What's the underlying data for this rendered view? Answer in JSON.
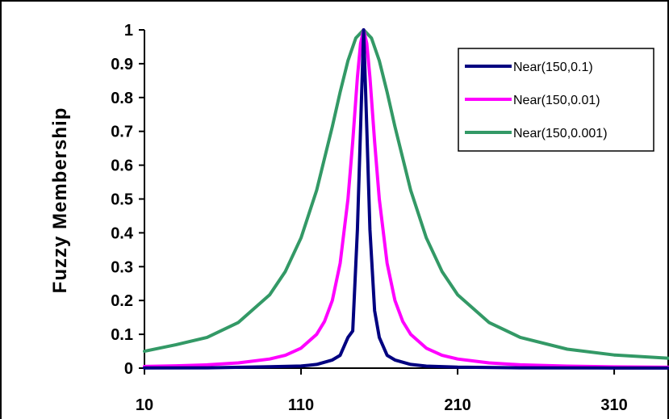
{
  "chart_data": {
    "type": "line",
    "title": "",
    "xlabel": "",
    "ylabel": "Fuzzy Membership",
    "xlim": [
      10,
      345
    ],
    "ylim": [
      0,
      1
    ],
    "x_ticks": [
      "10",
      "110",
      "210",
      "310"
    ],
    "x_tick_values": [
      10,
      110,
      210,
      310
    ],
    "y_ticks": [
      "0",
      "0.1",
      "0.2",
      "0.3",
      "0.4",
      "0.5",
      "0.6",
      "0.7",
      "0.8",
      "0.9",
      "1"
    ],
    "y_tick_values": [
      0,
      0.1,
      0.2,
      0.3,
      0.4,
      0.5,
      0.6,
      0.7,
      0.8,
      0.9,
      1
    ],
    "grid": false,
    "legend_position": "top-right",
    "series": [
      {
        "name": "Near(150,0.1)",
        "color": "#000080",
        "x": [
          10,
          50,
          90,
          110,
          120,
          130,
          135,
          140,
          143,
          146,
          148,
          150,
          152,
          154,
          157,
          160,
          165,
          170,
          180,
          190,
          210,
          250,
          300,
          345
        ],
        "y": [
          0.0005,
          0.001,
          0.0041,
          0.0062,
          0.011,
          0.024,
          0.038,
          0.091,
          0.11,
          0.41,
          0.71,
          1.0,
          0.71,
          0.41,
          0.17,
          0.091,
          0.038,
          0.024,
          0.011,
          0.006,
          0.0028,
          0.001,
          0.0004,
          0.0002
        ]
      },
      {
        "name": "Near(150,0.01)",
        "color": "#ff00ff",
        "x": [
          10,
          30,
          50,
          70,
          90,
          100,
          110,
          120,
          125,
          130,
          135,
          140,
          143,
          146,
          148,
          150,
          152,
          154,
          157,
          160,
          165,
          170,
          175,
          180,
          190,
          200,
          210,
          230,
          250,
          280,
          310,
          345
        ],
        "y": [
          0.005,
          0.0069,
          0.0099,
          0.0154,
          0.027,
          0.038,
          0.059,
          0.1,
          0.138,
          0.2,
          0.31,
          0.5,
          0.67,
          0.86,
          0.96,
          1.0,
          0.96,
          0.86,
          0.67,
          0.5,
          0.31,
          0.2,
          0.138,
          0.1,
          0.059,
          0.038,
          0.027,
          0.0154,
          0.0099,
          0.0059,
          0.0039,
          0.0026
        ]
      },
      {
        "name": "Near(150,0.001)",
        "color": "#339966",
        "x": [
          10,
          30,
          50,
          70,
          90,
          100,
          110,
          120,
          130,
          135,
          140,
          145,
          150,
          155,
          160,
          165,
          170,
          180,
          190,
          200,
          210,
          230,
          250,
          280,
          310,
          345
        ],
        "y": [
          0.05,
          0.069,
          0.091,
          0.135,
          0.217,
          0.286,
          0.385,
          0.526,
          0.714,
          0.816,
          0.909,
          0.976,
          1.0,
          0.976,
          0.909,
          0.816,
          0.714,
          0.526,
          0.385,
          0.286,
          0.217,
          0.135,
          0.091,
          0.056,
          0.039,
          0.029
        ]
      }
    ]
  }
}
